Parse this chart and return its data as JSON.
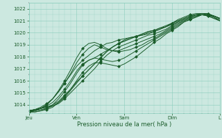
{
  "title": "",
  "xlabel": "Pression niveau de la mer( hPa )",
  "ylabel": "",
  "bg_color": "#cce8e0",
  "plot_bg_color": "#cce8e0",
  "grid_color": "#88ccbb",
  "line_color": "#1a5c2a",
  "ylim": [
    1013.3,
    1022.5
  ],
  "xlim": [
    0,
    96
  ],
  "yticks": [
    1014,
    1015,
    1016,
    1017,
    1018,
    1019,
    1020,
    1021,
    1022
  ],
  "xtick_positions": [
    0,
    24,
    48,
    72,
    96
  ],
  "xtick_labels": [
    "Jeu",
    "Ven",
    "Sam",
    "Dim",
    "L"
  ],
  "lines": [
    {
      "x": [
        0,
        3,
        6,
        9,
        12,
        15,
        18,
        21,
        24,
        27,
        30,
        33,
        36,
        39,
        42,
        45,
        48,
        51,
        54,
        57,
        60,
        63,
        66,
        69,
        72,
        75,
        78,
        81,
        84,
        87,
        90,
        93,
        96
      ],
      "y": [
        1013.5,
        1013.6,
        1013.7,
        1013.8,
        1013.9,
        1014.1,
        1014.5,
        1015.0,
        1015.5,
        1016.0,
        1016.5,
        1017.0,
        1017.6,
        1018.1,
        1018.5,
        1018.8,
        1019.0,
        1019.2,
        1019.4,
        1019.6,
        1019.8,
        1019.9,
        1020.1,
        1020.3,
        1020.6,
        1020.9,
        1021.1,
        1021.3,
        1021.5,
        1021.5,
        1021.4,
        1021.2,
        1021.0
      ]
    },
    {
      "x": [
        0,
        3,
        6,
        9,
        12,
        15,
        18,
        21,
        24,
        27,
        30,
        33,
        36,
        39,
        42,
        45,
        48,
        51,
        54,
        57,
        60,
        63,
        66,
        69,
        72,
        75,
        78,
        81,
        84,
        87,
        90,
        93,
        96
      ],
      "y": [
        1013.5,
        1013.6,
        1013.7,
        1013.8,
        1014.0,
        1014.3,
        1014.8,
        1015.3,
        1015.9,
        1016.4,
        1016.9,
        1017.4,
        1017.9,
        1018.4,
        1018.8,
        1019.1,
        1019.3,
        1019.5,
        1019.7,
        1019.8,
        1020.0,
        1020.1,
        1020.3,
        1020.5,
        1020.8,
        1021.0,
        1021.2,
        1021.4,
        1021.5,
        1021.5,
        1021.4,
        1021.2,
        1021.0
      ]
    },
    {
      "x": [
        0,
        3,
        6,
        9,
        12,
        15,
        18,
        21,
        24,
        27,
        30,
        33,
        36,
        39,
        42,
        45,
        48,
        51,
        54,
        57,
        60,
        63,
        66,
        69,
        72,
        75,
        78,
        81,
        84,
        87,
        90,
        93,
        96
      ],
      "y": [
        1013.5,
        1013.5,
        1013.6,
        1013.7,
        1013.9,
        1014.2,
        1014.6,
        1015.2,
        1015.8,
        1016.4,
        1016.9,
        1017.4,
        1017.9,
        1018.4,
        1018.8,
        1019.1,
        1019.4,
        1019.6,
        1019.7,
        1019.9,
        1020.1,
        1020.2,
        1020.4,
        1020.6,
        1020.8,
        1021.0,
        1021.2,
        1021.4,
        1021.5,
        1021.6,
        1021.6,
        1021.4,
        1021.2
      ]
    },
    {
      "x": [
        0,
        3,
        6,
        9,
        12,
        15,
        18,
        21,
        24,
        27,
        30,
        33,
        36,
        39,
        42,
        45,
        48,
        51,
        54,
        57,
        60,
        63,
        66,
        69,
        72,
        75,
        78,
        81,
        84,
        87,
        90,
        93,
        96
      ],
      "y": [
        1013.5,
        1013.6,
        1013.7,
        1013.9,
        1014.2,
        1014.7,
        1015.3,
        1016.0,
        1016.8,
        1017.4,
        1017.7,
        1017.9,
        1018.2,
        1018.5,
        1018.8,
        1019.1,
        1019.3,
        1019.5,
        1019.7,
        1019.9,
        1020.1,
        1020.2,
        1020.4,
        1020.5,
        1020.7,
        1020.9,
        1021.1,
        1021.3,
        1021.5,
        1021.6,
        1021.6,
        1021.4,
        1021.2
      ]
    },
    {
      "x": [
        0,
        3,
        6,
        9,
        12,
        15,
        18,
        21,
        24,
        27,
        30,
        33,
        36,
        39,
        42,
        45,
        48,
        51,
        54,
        57,
        60,
        63,
        66,
        69,
        72,
        75,
        78,
        81,
        84,
        87,
        90,
        93,
        96
      ],
      "y": [
        1013.5,
        1013.6,
        1013.8,
        1014.1,
        1014.5,
        1015.1,
        1015.8,
        1016.5,
        1017.2,
        1017.7,
        1018.1,
        1018.5,
        1018.8,
        1019.1,
        1019.2,
        1019.4,
        1019.5,
        1019.6,
        1019.7,
        1019.8,
        1019.9,
        1020.1,
        1020.3,
        1020.5,
        1020.8,
        1021.1,
        1021.3,
        1021.5,
        1021.6,
        1021.6,
        1021.5,
        1021.3,
        1021.1
      ]
    },
    {
      "x": [
        0,
        3,
        6,
        9,
        12,
        15,
        18,
        21,
        24,
        27,
        30,
        33,
        36,
        39,
        42,
        45,
        48,
        51,
        54,
        57,
        60,
        63,
        66,
        69,
        72,
        75,
        78,
        81,
        84,
        87,
        90,
        93,
        96
      ],
      "y": [
        1013.4,
        1013.5,
        1013.7,
        1014.0,
        1014.5,
        1015.1,
        1015.8,
        1016.6,
        1017.5,
        1018.2,
        1018.7,
        1019.0,
        1018.8,
        1018.6,
        1018.5,
        1018.5,
        1018.7,
        1018.9,
        1019.1,
        1019.3,
        1019.5,
        1019.7,
        1019.9,
        1020.2,
        1020.5,
        1020.8,
        1021.0,
        1021.2,
        1021.4,
        1021.5,
        1021.5,
        1021.4,
        1021.2
      ]
    },
    {
      "x": [
        0,
        3,
        6,
        9,
        12,
        15,
        18,
        21,
        24,
        27,
        30,
        33,
        36,
        39,
        42,
        45,
        48,
        51,
        54,
        57,
        60,
        63,
        66,
        69,
        72,
        75,
        78,
        81,
        84,
        87,
        90,
        93,
        96
      ],
      "y": [
        1013.4,
        1013.5,
        1013.7,
        1014.0,
        1014.5,
        1015.2,
        1016.0,
        1016.9,
        1017.9,
        1018.7,
        1019.1,
        1019.2,
        1019.0,
        1018.7,
        1018.5,
        1018.4,
        1018.5,
        1018.6,
        1018.8,
        1019.0,
        1019.3,
        1019.5,
        1019.8,
        1020.1,
        1020.4,
        1020.7,
        1021.0,
        1021.2,
        1021.4,
        1021.5,
        1021.5,
        1021.3,
        1021.0
      ]
    },
    {
      "x": [
        0,
        3,
        6,
        9,
        12,
        15,
        18,
        21,
        24,
        27,
        30,
        33,
        36,
        39,
        42,
        45,
        48,
        51,
        54,
        57,
        60,
        63,
        66,
        69,
        72,
        75,
        78,
        81,
        84,
        87,
        90,
        93,
        96
      ],
      "y": [
        1013.4,
        1013.4,
        1013.5,
        1013.7,
        1014.0,
        1014.5,
        1015.1,
        1015.8,
        1016.6,
        1017.3,
        1017.7,
        1017.9,
        1017.8,
        1017.7,
        1017.6,
        1017.7,
        1017.9,
        1018.2,
        1018.5,
        1018.8,
        1019.1,
        1019.4,
        1019.7,
        1020.0,
        1020.3,
        1020.6,
        1020.9,
        1021.1,
        1021.3,
        1021.5,
        1021.5,
        1021.4,
        1021.2
      ]
    },
    {
      "x": [
        0,
        3,
        6,
        9,
        12,
        15,
        18,
        21,
        24,
        27,
        30,
        33,
        36,
        39,
        42,
        45,
        48,
        51,
        54,
        57,
        60,
        63,
        66,
        69,
        72,
        75,
        78,
        81,
        84,
        87,
        90,
        93,
        96
      ],
      "y": [
        1013.4,
        1013.4,
        1013.5,
        1013.6,
        1013.8,
        1014.2,
        1014.7,
        1015.3,
        1016.0,
        1016.7,
        1017.2,
        1017.5,
        1017.5,
        1017.4,
        1017.3,
        1017.2,
        1017.4,
        1017.7,
        1018.0,
        1018.4,
        1018.8,
        1019.2,
        1019.5,
        1019.9,
        1020.2,
        1020.5,
        1020.9,
        1021.1,
        1021.3,
        1021.5,
        1021.5,
        1021.4,
        1021.2
      ]
    }
  ]
}
